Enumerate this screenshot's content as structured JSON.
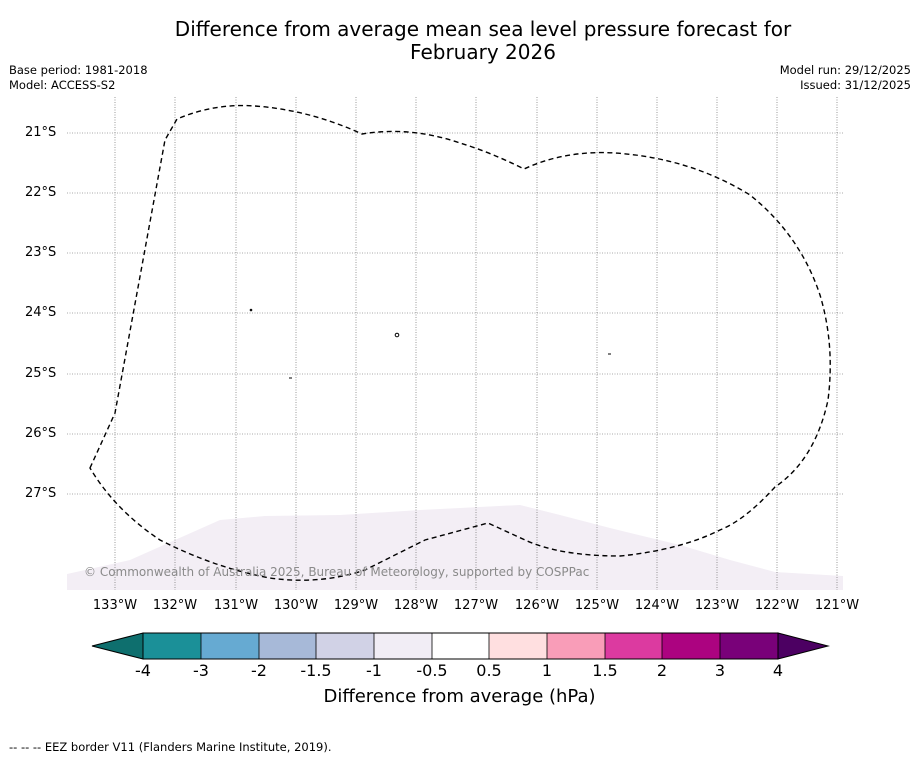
{
  "title_line1": "Difference from average mean sea level pressure forecast for",
  "title_line2": "February 2026",
  "meta_left": {
    "base_period": "Base period: 1981-2018",
    "model": "Model: ACCESS-S2"
  },
  "meta_right": {
    "model_run": "Model run: 29/12/2025",
    "issued": "Issued: 31/12/2025"
  },
  "lat_labels": [
    "21°S",
    "22°S",
    "23°S",
    "24°S",
    "25°S",
    "26°S",
    "27°S"
  ],
  "lon_labels": [
    "133°W",
    "132°W",
    "131°W",
    "130°W",
    "129°W",
    "128°W",
    "127°W",
    "126°W",
    "125°W",
    "124°W",
    "123°W",
    "122°W",
    "121°W"
  ],
  "copyright": "© Commonwealth of Australia 2025, Bureau of Meteorology, supported by COSPPac",
  "colorbar": {
    "ticks": [
      "-4",
      "-3",
      "-2",
      "-1.5",
      "-1",
      "-0.5",
      "0.5",
      "1",
      "1.5",
      "2",
      "3",
      "4"
    ],
    "colors": [
      "#0e6f6e",
      "#1b9098",
      "#66aad2",
      "#a7b9d8",
      "#d1d2e6",
      "#f1edf5",
      "#ffffff",
      "#ffdfe0",
      "#f99db8",
      "#dc3aa0",
      "#ac0380",
      "#790179",
      "#4c0062"
    ],
    "label": "Difference from average (hPa)"
  },
  "footer": "--  --  -- EEZ border V11 (Flanders Marine Institute, 2019)."
}
